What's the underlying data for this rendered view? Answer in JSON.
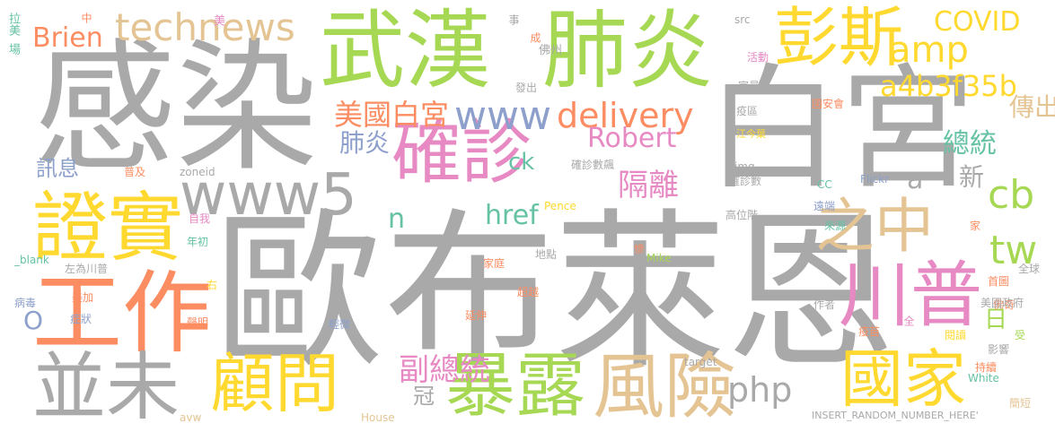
{
  "palette": {
    "gray": "#A9A9A9",
    "green": "#A6D854",
    "yellow": "#FFD92F",
    "orange": "#FC8D62",
    "pink": "#E78AC3",
    "tan": "#E5C494",
    "blue": "#8DA0CB",
    "teal": "#66C2A5"
  },
  "words": [
    {
      "text": "歐布萊恩",
      "color": "gray"
    },
    {
      "text": "感染",
      "color": "gray"
    },
    {
      "text": "白宮",
      "color": "gray"
    },
    {
      "text": "武漢",
      "color": "green"
    },
    {
      "text": "肺炎",
      "color": "green"
    },
    {
      "text": "彭斯",
      "color": "yellow"
    },
    {
      "text": "technews",
      "color": "tan"
    },
    {
      "text": "COVID",
      "color": "yellow"
    },
    {
      "text": "Brien",
      "color": "orange"
    },
    {
      "text": "amp",
      "color": "yellow"
    },
    {
      "text": "a4b3f35b",
      "color": "yellow"
    },
    {
      "text": "www5",
      "color": "gray"
    },
    {
      "text": "確診",
      "color": "pink"
    },
    {
      "text": "www",
      "color": "blue"
    },
    {
      "text": "delivery",
      "color": "orange"
    },
    {
      "text": "美國白宮",
      "color": "orange"
    },
    {
      "text": "Robert",
      "color": "pink"
    },
    {
      "text": "傳出",
      "color": "tan"
    },
    {
      "text": "總統",
      "color": "teal"
    },
    {
      "text": "證實",
      "color": "yellow"
    },
    {
      "text": "之中",
      "color": "tan"
    },
    {
      "text": "cb",
      "color": "green"
    },
    {
      "text": "隔離",
      "color": "pink"
    },
    {
      "text": "工作",
      "color": "orange"
    },
    {
      "text": "川普",
      "color": "pink"
    },
    {
      "text": "tw",
      "color": "green"
    },
    {
      "text": "並未",
      "color": "gray"
    },
    {
      "text": "顧問",
      "color": "yellow"
    },
    {
      "text": "暴露",
      "color": "green"
    },
    {
      "text": "風險",
      "color": "tan"
    },
    {
      "text": "國家",
      "color": "yellow"
    },
    {
      "text": "php",
      "color": "gray"
    },
    {
      "text": "副總統",
      "color": "pink"
    },
    {
      "text": "href",
      "color": "teal"
    },
    {
      "text": "n",
      "color": "teal"
    },
    {
      "text": "ck",
      "color": "teal"
    },
    {
      "text": "肺炎",
      "color": "blue"
    },
    {
      "text": "訊息",
      "color": "blue"
    },
    {
      "text": "a",
      "color": "gray"
    },
    {
      "text": "新",
      "color": "gray"
    },
    {
      "text": "日",
      "color": "green"
    },
    {
      "text": "冠",
      "color": "gray"
    },
    {
      "text": "O",
      "color": "blue"
    },
    {
      "text": "拉美",
      "color": "teal"
    },
    {
      "text": "場",
      "color": "teal"
    },
    {
      "text": "中",
      "color": "orange"
    },
    {
      "text": "美",
      "color": "pink"
    },
    {
      "text": "事",
      "color": "gray"
    },
    {
      "text": "成",
      "color": "orange"
    },
    {
      "text": "佛州",
      "color": "gray"
    },
    {
      "text": "發出",
      "color": "gray"
    },
    {
      "text": "src",
      "color": "gray"
    },
    {
      "text": "活動",
      "color": "pink"
    },
    {
      "text": "官員",
      "color": "gray"
    },
    {
      "text": "疫區",
      "color": "gray"
    },
    {
      "text": "國安會",
      "color": "orange"
    },
    {
      "text": "江今葉",
      "color": "yellow"
    },
    {
      "text": "普及",
      "color": "orange"
    },
    {
      "text": "zoneid",
      "color": "gray"
    },
    {
      "text": "img",
      "color": "gray"
    },
    {
      "text": "確診數",
      "color": "gray"
    },
    {
      "text": "確診數飆",
      "color": "gray"
    },
    {
      "text": "Flickr",
      "color": "blue"
    },
    {
      "text": "CC",
      "color": "teal"
    },
    {
      "text": "遠端",
      "color": "blue"
    },
    {
      "text": "Pence",
      "color": "yellow"
    },
    {
      "text": "高位階",
      "color": "gray"
    },
    {
      "text": "來源",
      "color": "teal"
    },
    {
      "text": "家",
      "color": "orange"
    },
    {
      "text": "自我",
      "color": "pink"
    },
    {
      "text": "年初",
      "color": "teal"
    },
    {
      "text": "_blank",
      "color": "teal"
    },
    {
      "text": "左為川普",
      "color": "gray"
    },
    {
      "text": "地點",
      "color": "gray"
    },
    {
      "text": "家庭",
      "color": "orange"
    },
    {
      "text": "慘",
      "color": "orange"
    },
    {
      "text": "Mike",
      "color": "green"
    },
    {
      "text": "全球",
      "color": "gray"
    },
    {
      "text": "首圖",
      "color": "orange"
    },
    {
      "text": "佛奇",
      "color": "orange"
    },
    {
      "text": "右",
      "color": "yellow"
    },
    {
      "text": "病毒",
      "color": "blue"
    },
    {
      "text": "美加",
      "color": "orange"
    },
    {
      "text": "症狀",
      "color": "blue"
    },
    {
      "text": "超越",
      "color": "orange"
    },
    {
      "text": "延伸",
      "color": "orange"
    },
    {
      "text": "作者",
      "color": "gray"
    },
    {
      "text": "美國政府",
      "color": "gray"
    },
    {
      "text": "聲明",
      "color": "orange"
    },
    {
      "text": "輕微",
      "color": "blue"
    },
    {
      "text": "疫苗",
      "color": "orange"
    },
    {
      "text": "全",
      "color": "pink"
    },
    {
      "text": "閱讀",
      "color": "yellow"
    },
    {
      "text": "受",
      "color": "green"
    },
    {
      "text": "影響",
      "color": "gray"
    },
    {
      "text": "target",
      "color": "gray"
    },
    {
      "text": "持續",
      "color": "orange"
    },
    {
      "text": "White",
      "color": "teal"
    },
    {
      "text": "簡短",
      "color": "tan"
    },
    {
      "text": "avw",
      "color": "tan"
    },
    {
      "text": "House",
      "color": "tan"
    },
    {
      "text": "INSERT_RANDOM_NUMBER_HERE'",
      "color": "gray"
    }
  ]
}
